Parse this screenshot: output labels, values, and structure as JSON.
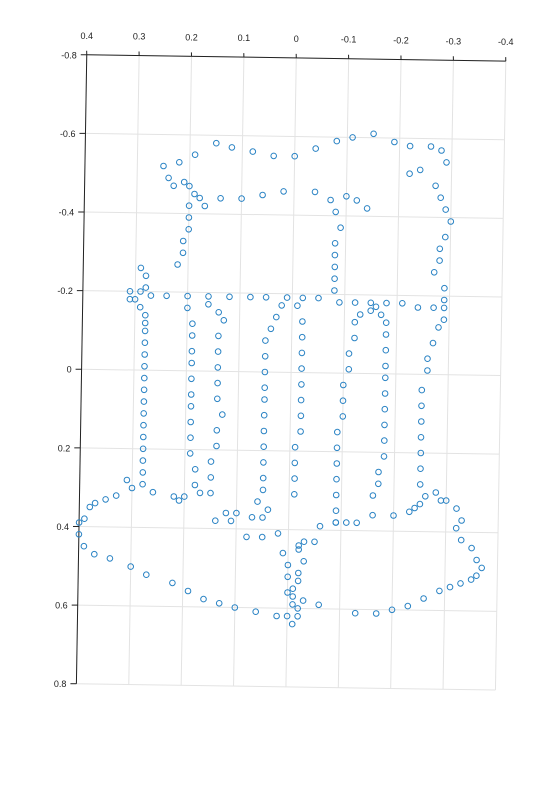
{
  "chart_data": {
    "type": "scatter",
    "view": "3d-projection",
    "colors": {
      "marker": "#2a83c4",
      "grid": "#e3e3e3",
      "axis": "#222222"
    },
    "marker": "open-circle",
    "grid": true,
    "title": "",
    "xlabel": "",
    "ylabel": "",
    "x_ticks": [
      "0.4",
      "0.3",
      "0.2",
      "0.1",
      "0",
      "-0.1",
      "-0.2",
      "-0.3",
      "-0.4"
    ],
    "y_ticks": [
      "-0.8",
      "-0.6",
      "-0.4",
      "-0.2",
      "0",
      "0.2",
      "0.4",
      "0.6",
      "0.8"
    ],
    "x_values": [
      0.4,
      0.3,
      0.2,
      0.1,
      0,
      -0.1,
      -0.2,
      -0.3,
      -0.4
    ],
    "y_values": [
      -0.8,
      -0.6,
      -0.4,
      -0.2,
      0,
      0.2,
      0.4,
      0.6,
      0.8
    ],
    "xlim": [
      0.4,
      -0.4
    ],
    "ylim": [
      -0.8,
      0.8
    ],
    "points": [
      [
        0.15,
        -0.58
      ],
      [
        0.12,
        -0.57
      ],
      [
        0.08,
        -0.56
      ],
      [
        0.04,
        -0.55
      ],
      [
        0.0,
        -0.55
      ],
      [
        -0.04,
        -0.57
      ],
      [
        -0.08,
        -0.59
      ],
      [
        -0.11,
        -0.6
      ],
      [
        -0.15,
        -0.61
      ],
      [
        -0.19,
        -0.59
      ],
      [
        -0.22,
        -0.58
      ],
      [
        -0.26,
        -0.58
      ],
      [
        -0.28,
        -0.57
      ],
      [
        -0.29,
        -0.54
      ],
      [
        -0.22,
        -0.51
      ],
      [
        -0.24,
        -0.52
      ],
      [
        -0.27,
        -0.48
      ],
      [
        -0.28,
        -0.45
      ],
      [
        -0.29,
        -0.42
      ],
      [
        -0.3,
        -0.39
      ],
      [
        -0.29,
        -0.35
      ],
      [
        -0.28,
        -0.32
      ],
      [
        -0.28,
        -0.29
      ],
      [
        -0.27,
        -0.26
      ],
      [
        -0.29,
        -0.22
      ],
      [
        -0.29,
        -0.19
      ],
      [
        0.21,
        -0.48
      ],
      [
        0.2,
        -0.47
      ],
      [
        0.19,
        -0.45
      ],
      [
        0.17,
        -0.42
      ],
      [
        0.2,
        -0.42
      ],
      [
        0.2,
        -0.39
      ],
      [
        0.2,
        -0.36
      ],
      [
        0.21,
        -0.33
      ],
      [
        0.21,
        -0.3
      ],
      [
        0.22,
        -0.27
      ],
      [
        0.23,
        -0.47
      ],
      [
        0.24,
        -0.49
      ],
      [
        0.25,
        -0.52
      ],
      [
        0.22,
        -0.53
      ],
      [
        0.19,
        -0.55
      ],
      [
        0.18,
        -0.44
      ],
      [
        0.14,
        -0.44
      ],
      [
        0.1,
        -0.44
      ],
      [
        0.06,
        -0.45
      ],
      [
        0.02,
        -0.46
      ],
      [
        -0.04,
        -0.46
      ],
      [
        -0.07,
        -0.44
      ],
      [
        -0.08,
        -0.41
      ],
      [
        -0.12,
        -0.44
      ],
      [
        -0.14,
        -0.42
      ],
      [
        -0.1,
        -0.45
      ],
      [
        -0.09,
        -0.37
      ],
      [
        -0.08,
        -0.33
      ],
      [
        -0.08,
        -0.3
      ],
      [
        -0.08,
        -0.27
      ],
      [
        -0.08,
        -0.24
      ],
      [
        -0.08,
        -0.21
      ],
      [
        0.29,
        -0.26
      ],
      [
        0.28,
        -0.24
      ],
      [
        0.28,
        -0.21
      ],
      [
        0.29,
        -0.2
      ],
      [
        0.31,
        -0.2
      ],
      [
        0.3,
        -0.18
      ],
      [
        0.31,
        -0.18
      ],
      [
        0.29,
        -0.16
      ],
      [
        0.28,
        -0.14
      ],
      [
        0.28,
        -0.12
      ],
      [
        0.28,
        -0.1
      ],
      [
        0.28,
        -0.07
      ],
      [
        0.28,
        -0.04
      ],
      [
        0.28,
        -0.01
      ],
      [
        0.28,
        0.02
      ],
      [
        0.28,
        0.05
      ],
      [
        0.28,
        0.08
      ],
      [
        0.28,
        0.11
      ],
      [
        0.28,
        0.14
      ],
      [
        0.28,
        0.17
      ],
      [
        0.28,
        0.2
      ],
      [
        0.28,
        0.23
      ],
      [
        0.28,
        0.26
      ],
      [
        0.28,
        0.29
      ],
      [
        0.31,
        0.28
      ],
      [
        0.3,
        0.3
      ],
      [
        0.27,
        -0.19
      ],
      [
        0.24,
        -0.19
      ],
      [
        0.2,
        -0.19
      ],
      [
        0.16,
        -0.19
      ],
      [
        0.12,
        -0.19
      ],
      [
        0.08,
        -0.19
      ],
      [
        0.05,
        -0.19
      ],
      [
        0.01,
        -0.19
      ],
      [
        -0.02,
        -0.19
      ],
      [
        -0.05,
        -0.19
      ],
      [
        -0.09,
        -0.18
      ],
      [
        -0.12,
        -0.18
      ],
      [
        -0.15,
        -0.18
      ],
      [
        -0.18,
        -0.18
      ],
      [
        -0.21,
        -0.18
      ],
      [
        -0.24,
        -0.17
      ],
      [
        -0.27,
        -0.17
      ],
      [
        -0.29,
        -0.17
      ],
      [
        -0.29,
        -0.14
      ],
      [
        -0.28,
        -0.12
      ],
      [
        -0.27,
        -0.08
      ],
      [
        -0.26,
        -0.04
      ],
      [
        -0.26,
        -0.01
      ],
      [
        -0.25,
        0.04
      ],
      [
        -0.25,
        0.08
      ],
      [
        -0.25,
        0.12
      ],
      [
        -0.25,
        0.16
      ],
      [
        -0.25,
        0.2
      ],
      [
        -0.25,
        0.24
      ],
      [
        -0.25,
        0.28
      ],
      [
        -0.26,
        0.31
      ],
      [
        -0.25,
        0.33
      ],
      [
        -0.24,
        0.34
      ],
      [
        0.2,
        -0.16
      ],
      [
        0.19,
        -0.12
      ],
      [
        0.19,
        -0.09
      ],
      [
        0.19,
        -0.05
      ],
      [
        0.19,
        -0.02
      ],
      [
        0.19,
        0.02
      ],
      [
        0.19,
        0.06
      ],
      [
        0.19,
        0.09
      ],
      [
        0.19,
        0.13
      ],
      [
        0.19,
        0.17
      ],
      [
        0.19,
        0.21
      ],
      [
        0.18,
        0.25
      ],
      [
        0.18,
        0.29
      ],
      [
        0.17,
        0.31
      ],
      [
        0.2,
        0.32
      ],
      [
        0.16,
        -0.17
      ],
      [
        0.14,
        -0.15
      ],
      [
        0.13,
        -0.13
      ],
      [
        0.14,
        -0.09
      ],
      [
        0.14,
        -0.05
      ],
      [
        0.14,
        -0.01
      ],
      [
        0.14,
        0.03
      ],
      [
        0.14,
        0.07
      ],
      [
        0.13,
        0.11
      ],
      [
        0.14,
        0.15
      ],
      [
        0.14,
        0.19
      ],
      [
        0.15,
        0.23
      ],
      [
        0.15,
        0.27
      ],
      [
        0.15,
        0.31
      ],
      [
        0.12,
        0.36
      ],
      [
        0.1,
        0.36
      ],
      [
        0.07,
        0.37
      ],
      [
        0.05,
        0.37
      ],
      [
        0.04,
        0.35
      ],
      [
        0.02,
        -0.17
      ],
      [
        0.03,
        -0.14
      ],
      [
        0.04,
        -0.11
      ],
      [
        0.05,
        -0.08
      ],
      [
        0.05,
        -0.04
      ],
      [
        0.05,
        0.0
      ],
      [
        0.05,
        0.04
      ],
      [
        0.05,
        0.07
      ],
      [
        0.05,
        0.11
      ],
      [
        0.05,
        0.15
      ],
      [
        0.05,
        0.19
      ],
      [
        0.05,
        0.23
      ],
      [
        0.05,
        0.27
      ],
      [
        0.05,
        0.3
      ],
      [
        0.06,
        0.33
      ],
      [
        -0.01,
        -0.17
      ],
      [
        -0.02,
        -0.13
      ],
      [
        -0.02,
        -0.09
      ],
      [
        -0.02,
        -0.05
      ],
      [
        -0.02,
        -0.01
      ],
      [
        -0.02,
        0.03
      ],
      [
        -0.02,
        0.07
      ],
      [
        -0.02,
        0.11
      ],
      [
        -0.02,
        0.15
      ],
      [
        -0.01,
        0.19
      ],
      [
        -0.01,
        0.23
      ],
      [
        -0.01,
        0.27
      ],
      [
        -0.01,
        0.31
      ],
      [
        -0.06,
        0.39
      ],
      [
        -0.09,
        0.38
      ],
      [
        -0.09,
        0.35
      ],
      [
        -0.09,
        0.31
      ],
      [
        -0.09,
        0.27
      ],
      [
        -0.09,
        0.23
      ],
      [
        -0.09,
        0.19
      ],
      [
        -0.09,
        0.15
      ],
      [
        -0.1,
        0.11
      ],
      [
        -0.1,
        0.07
      ],
      [
        -0.1,
        0.03
      ],
      [
        -0.11,
        -0.01
      ],
      [
        -0.11,
        -0.05
      ],
      [
        -0.12,
        -0.09
      ],
      [
        -0.12,
        -0.13
      ],
      [
        -0.13,
        -0.15
      ],
      [
        -0.15,
        -0.16
      ],
      [
        -0.16,
        -0.17
      ],
      [
        -0.17,
        -0.15
      ],
      [
        -0.18,
        -0.13
      ],
      [
        -0.18,
        -0.1
      ],
      [
        -0.18,
        -0.06
      ],
      [
        -0.18,
        -0.02
      ],
      [
        -0.18,
        0.01
      ],
      [
        -0.18,
        0.05
      ],
      [
        -0.18,
        0.09
      ],
      [
        -0.18,
        0.13
      ],
      [
        -0.18,
        0.17
      ],
      [
        -0.18,
        0.21
      ],
      [
        -0.17,
        0.25
      ],
      [
        -0.17,
        0.28
      ],
      [
        -0.16,
        0.31
      ],
      [
        -0.16,
        0.36
      ],
      [
        -0.13,
        0.38
      ],
      [
        -0.11,
        0.38
      ],
      [
        -0.09,
        0.38
      ],
      [
        -0.2,
        0.36
      ],
      [
        -0.23,
        0.35
      ],
      [
        -0.28,
        0.3
      ],
      [
        -0.29,
        0.32
      ],
      [
        -0.3,
        0.32
      ],
      [
        -0.32,
        0.34
      ],
      [
        -0.33,
        0.37
      ],
      [
        -0.32,
        0.39
      ],
      [
        -0.33,
        0.42
      ],
      [
        -0.35,
        0.44
      ],
      [
        -0.36,
        0.47
      ],
      [
        -0.37,
        0.49
      ],
      [
        -0.36,
        0.51
      ],
      [
        -0.35,
        0.52
      ],
      [
        -0.33,
        0.53
      ],
      [
        -0.31,
        0.54
      ],
      [
        -0.29,
        0.55
      ],
      [
        -0.26,
        0.57
      ],
      [
        -0.23,
        0.59
      ],
      [
        -0.2,
        0.6
      ],
      [
        -0.17,
        0.61
      ],
      [
        -0.13,
        0.61
      ],
      [
        -0.06,
        0.59
      ],
      [
        -0.03,
        0.58
      ],
      [
        -0.01,
        0.59
      ],
      [
        -0.02,
        0.6
      ],
      [
        -0.02,
        0.62
      ],
      [
        -0.01,
        0.64
      ],
      [
        0.0,
        0.62
      ],
      [
        0.02,
        0.62
      ],
      [
        0.06,
        0.61
      ],
      [
        0.1,
        0.6
      ],
      [
        0.13,
        0.59
      ],
      [
        0.16,
        0.58
      ],
      [
        0.19,
        0.56
      ],
      [
        0.22,
        0.54
      ],
      [
        0.27,
        0.52
      ],
      [
        0.3,
        0.5
      ],
      [
        0.34,
        0.48
      ],
      [
        0.37,
        0.47
      ],
      [
        0.39,
        0.45
      ],
      [
        0.4,
        0.42
      ],
      [
        0.4,
        0.39
      ],
      [
        0.39,
        0.38
      ],
      [
        0.38,
        0.35
      ],
      [
        0.37,
        0.34
      ],
      [
        0.35,
        0.33
      ],
      [
        0.33,
        0.32
      ],
      [
        0.26,
        0.31
      ],
      [
        0.22,
        0.32
      ],
      [
        0.21,
        0.33
      ],
      [
        0.02,
        0.41
      ],
      [
        0.05,
        0.42
      ],
      [
        0.08,
        0.42
      ],
      [
        0.11,
        0.38
      ],
      [
        0.14,
        0.38
      ],
      [
        0.01,
        0.46
      ],
      [
        0.0,
        0.49
      ],
      [
        0.0,
        0.52
      ],
      [
        0.0,
        0.56
      ],
      [
        -0.01,
        0.57
      ],
      [
        -0.03,
        0.43
      ],
      [
        -0.05,
        0.43
      ],
      [
        -0.02,
        0.44
      ],
      [
        -0.02,
        0.45
      ],
      [
        -0.03,
        0.48
      ],
      [
        -0.02,
        0.51
      ],
      [
        -0.02,
        0.53
      ],
      [
        -0.01,
        0.55
      ]
    ]
  }
}
